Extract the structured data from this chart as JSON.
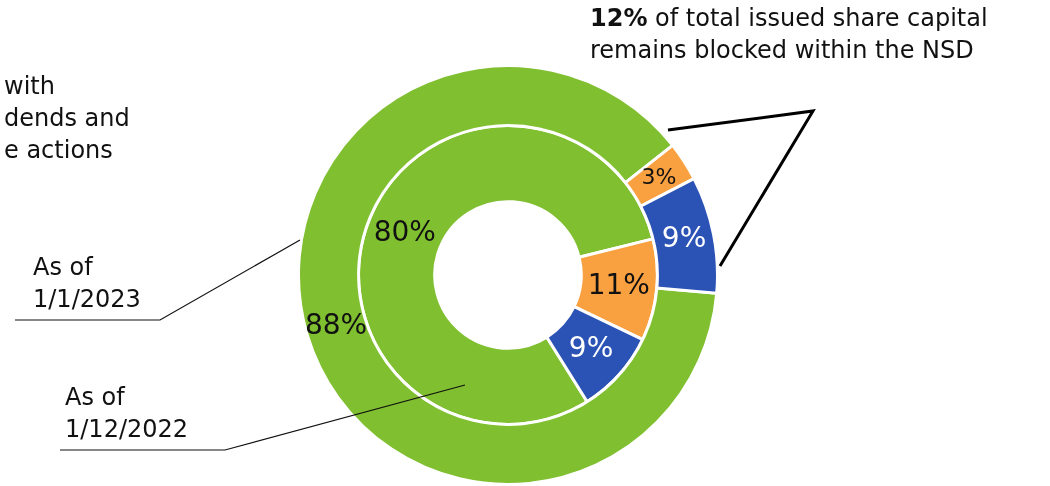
{
  "chart_data": {
    "type": "donut",
    "categories": [
      null,
      null,
      null
    ],
    "series": [
      {
        "name": "As of 1/1/2023",
        "colors": [
          "#7fbf30",
          "#f9a040",
          "#2b52b5"
        ],
        "values": [
          88,
          3,
          9
        ],
        "value_labels": [
          "88%",
          "3%",
          "9%"
        ]
      },
      {
        "name": "As of 1/12/2022",
        "colors": [
          "#7fbf30",
          "#f9a040",
          "#2b52b5"
        ],
        "values": [
          80,
          11,
          9
        ],
        "value_labels": [
          "80%",
          "11%",
          "9%"
        ]
      }
    ],
    "legend": false,
    "annotations": [
      "12% of total issued share capital remains blocked within the NSD",
      "with\ndends and\ne actions"
    ]
  }
}
